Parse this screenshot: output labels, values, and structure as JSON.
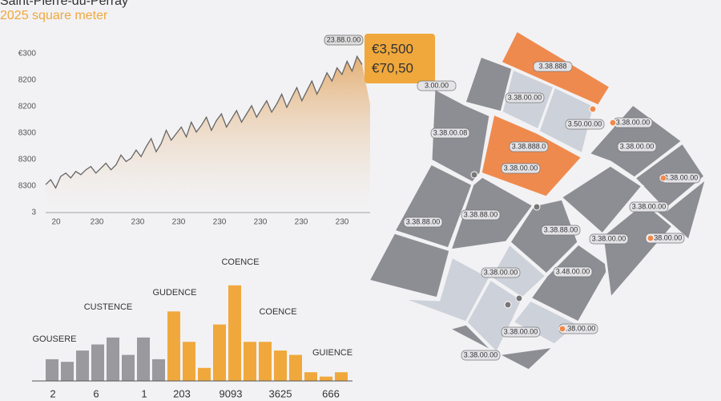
{
  "title": "Saint-Pierre-du-Perray",
  "subtitle": "2025 square meter",
  "chart_data": [
    {
      "type": "line",
      "color": "#d9a36a",
      "y_labels": [
        "€300",
        "8200",
        "8200",
        "8300",
        "8300",
        "8300",
        "3"
      ],
      "x_labels": [
        "20",
        "230",
        "230",
        "230",
        "230",
        "230",
        "230",
        "230"
      ],
      "ylim": [
        0,
        100
      ],
      "values": [
        17,
        20,
        15,
        22,
        24,
        21,
        25,
        23,
        26,
        28,
        24,
        27,
        30,
        26,
        29,
        35,
        31,
        33,
        38,
        34,
        40,
        45,
        37,
        42,
        50,
        44,
        48,
        52,
        46,
        55,
        49,
        53,
        58,
        50,
        56,
        60,
        52,
        57,
        62,
        55,
        60,
        65,
        58,
        63,
        68,
        61,
        66,
        72,
        64,
        70,
        76,
        68,
        74,
        80,
        72,
        78,
        85,
        80,
        88,
        84,
        92,
        86,
        95,
        90
      ],
      "callout": [
        "€3,500",
        "€70,50"
      ],
      "callout_tag": "23.88.0.00"
    },
    {
      "type": "bar",
      "ylim": [
        0,
        120
      ],
      "values": [
        25,
        22,
        35,
        42,
        50,
        30,
        50,
        25,
        80,
        45,
        15,
        65,
        110,
        45,
        45,
        35,
        30,
        10,
        5,
        10
      ],
      "colors": [
        "#9a9a9e",
        "#9a9a9e",
        "#9a9a9e",
        "#9a9a9e",
        "#9a9a9e",
        "#9a9a9e",
        "#9a9a9e",
        "#9a9a9e",
        "#f0a83c",
        "#f0a83c",
        "#f0a83c",
        "#f0a83c",
        "#f0a83c",
        "#f0a83c",
        "#f0a83c",
        "#f0a83c",
        "#f0a83c",
        "#f0a83c",
        "#f0a83c",
        "#f0a83c"
      ],
      "x_labels": [
        "2",
        "6",
        "1",
        "203",
        "9093",
        "3625",
        "666"
      ],
      "annotations": [
        "GOUSERE",
        "CUSTENCE",
        "GUDENCE",
        "COENCE",
        "COENCE",
        "GUIENCE"
      ]
    }
  ],
  "map": {
    "labels": [
      "3.00.00",
      "3.38.888",
      "3.38.00.00",
      "3.50.00.00",
      "3.38.00.08",
      "3.38.888.0",
      "3.38.00.00",
      "3.38.00.00",
      "3.38.00.00",
      "3.38.00.00",
      "3.38.88.00",
      "3.38.00.00",
      "3.38.88.00",
      "3.38.88.00",
      "3.38.00.00",
      "3.38.00.00",
      "3.38.00.00",
      "3.48.00.00",
      "3.38.00.00",
      "3.38.00.00",
      "3.38.00.00"
    ]
  }
}
